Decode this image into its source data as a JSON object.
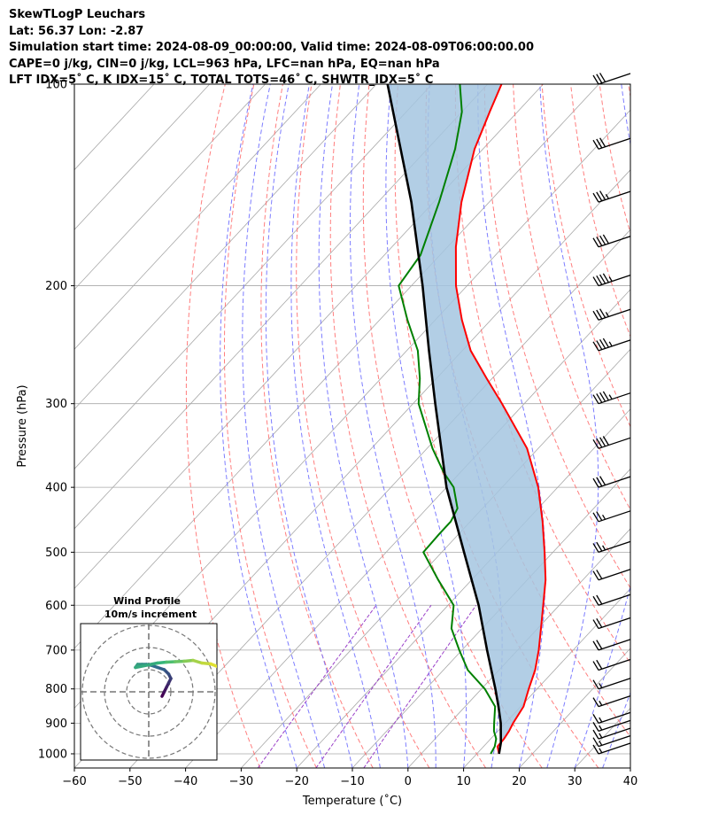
{
  "header": {
    "line1": "SkewTLogP Leuchars",
    "line2": "Lat: 56.37   Lon: -2.87",
    "line3": "Simulation start time: 2024-08-09_00:00:00, Valid time: 2024-08-09T06:00:00.00",
    "line4": "CAPE=0 j/kg, CIN=0 j/kg, LCL=963 hPa, LFC=nan hPa, EQ=nan hPa",
    "line5": "LFT IDX=5˚ C, K IDX=15˚ C, TOTAL TOTS=46˚ C, SHWTR_IDX=5˚ C"
  },
  "chart_data": {
    "type": "line",
    "xlabel": "Temperature (˚C)",
    "ylabel": "Pressure (hPa)",
    "xlim": [
      -60,
      40
    ],
    "ylim": [
      1050,
      100
    ],
    "y_scale": "log",
    "x_ticks": [
      -60,
      -50,
      -40,
      -30,
      -20,
      -10,
      0,
      10,
      20,
      30,
      40
    ],
    "y_ticks": [
      100,
      200,
      300,
      400,
      500,
      600,
      700,
      800,
      900,
      1000
    ],
    "grid": true,
    "colors": {
      "temperature": "#ff0000",
      "dewpoint": "#008000",
      "parcel": "#000000",
      "shade": "#a4c6e0",
      "dry_adiabats": "#ff7070",
      "moist_adiabats": "#6f6fff",
      "mixing_ratio": "#9a40c8",
      "isotherms": "#a8a8a8"
    },
    "series": [
      {
        "key": "temperature",
        "pressure": [
          1000,
          975,
          950,
          925,
          900,
          850,
          800,
          750,
          700,
          650,
          600,
          550,
          500,
          450,
          400,
          350,
          300,
          275,
          250,
          225,
          200,
          175,
          150,
          125,
          110,
          100
        ],
        "temperature": [
          14,
          12.5,
          12.4,
          12.0,
          11.4,
          10.5,
          8.5,
          6.5,
          3.8,
          0.6,
          -2.9,
          -6.7,
          -11.5,
          -17.0,
          -23.5,
          -32.0,
          -44.0,
          -51.0,
          -58.5,
          -65.2,
          -72.0,
          -78.5,
          -85.0,
          -91.5,
          -95.0,
          -97.5
        ]
      },
      {
        "key": "dewpoint",
        "pressure": [
          1000,
          975,
          950,
          925,
          900,
          850,
          800,
          750,
          700,
          650,
          600,
          550,
          500,
          470,
          450,
          430,
          400,
          380,
          350,
          300,
          275,
          250,
          225,
          200,
          180,
          150,
          125,
          110,
          100
        ],
        "temperature": [
          12.5,
          12.0,
          11.0,
          9.3,
          8.0,
          5.4,
          0.6,
          -5.6,
          -10.5,
          -15.5,
          -19.0,
          -26.0,
          -33.3,
          -33.5,
          -33.5,
          -34.5,
          -38.7,
          -43.0,
          -49.0,
          -59.0,
          -63.0,
          -68.0,
          -75.0,
          -82.3,
          -83.5,
          -89.0,
          -95.0,
          -100.0,
          -105.0
        ]
      },
      {
        "key": "parcel",
        "pressure": [
          1000,
          963,
          900,
          850,
          800,
          700,
          600,
          500,
          400,
          300,
          250,
          200,
          150,
          100
        ],
        "temperature": [
          14,
          12.5,
          9.2,
          6.0,
          2.5,
          -5.5,
          -14.5,
          -26.0,
          -40.0,
          -56.0,
          -66.0,
          -78.0,
          -94.0,
          -118.0
        ]
      }
    ],
    "wind_barbs": {
      "pressure": [
        1000,
        975,
        950,
        925,
        900,
        850,
        800,
        750,
        700,
        650,
        600,
        550,
        500,
        450,
        400,
        350,
        300,
        250,
        225,
        200,
        175,
        150,
        125,
        100
      ],
      "speed_kt": [
        15,
        15,
        15,
        15,
        15,
        15,
        15,
        20,
        20,
        20,
        20,
        20,
        25,
        25,
        30,
        40,
        45,
        45,
        35,
        45,
        40,
        35,
        30,
        30
      ]
    },
    "hodograph": {
      "title_line1": "Wind Profile",
      "title_line2": "10m/s increment",
      "u": [
        3,
        3.5,
        4,
        4.5,
        5,
        4.5,
        3.5,
        2.0,
        0.5,
        -0.5,
        -1.5,
        -2.5,
        -3,
        2,
        4,
        6,
        8,
        10,
        12,
        14,
        16,
        17
      ],
      "v": [
        -1,
        0,
        1,
        2,
        3,
        4,
        5,
        5.5,
        6,
        6.2,
        6.2,
        6.2,
        5.5,
        6.5,
        6.7,
        6.8,
        6.9,
        7.1,
        6.5,
        6.3,
        5.5,
        5.0
      ]
    }
  }
}
